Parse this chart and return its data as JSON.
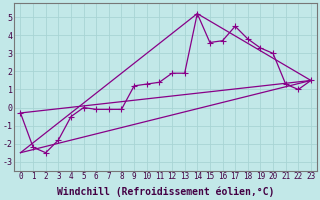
{
  "background_color": "#c2e8e8",
  "grid_color": "#a8d4d4",
  "line_color": "#880088",
  "xlabel": "Windchill (Refroidissement éolien,°C)",
  "xlabel_fontsize": 7,
  "ylim": [
    -3.5,
    5.8
  ],
  "xlim": [
    -0.5,
    23.5
  ],
  "yticks": [
    -3,
    -2,
    -1,
    0,
    1,
    2,
    3,
    4,
    5
  ],
  "xticks": [
    0,
    1,
    2,
    3,
    4,
    5,
    6,
    7,
    8,
    9,
    10,
    11,
    12,
    13,
    14,
    15,
    16,
    17,
    18,
    19,
    20,
    21,
    22,
    23
  ],
  "series1_x": [
    0,
    1,
    2,
    3,
    4,
    5,
    6,
    7,
    8,
    9,
    10,
    11,
    12,
    13,
    14,
    15,
    16,
    17,
    18,
    19,
    20,
    21,
    22,
    23
  ],
  "series1_y": [
    -0.3,
    -2.2,
    -2.5,
    -1.8,
    -0.5,
    0.0,
    -0.1,
    -0.1,
    -0.1,
    1.2,
    1.3,
    1.4,
    1.9,
    1.9,
    5.2,
    3.6,
    3.7,
    4.5,
    3.8,
    3.3,
    3.0,
    1.3,
    1.0,
    1.5
  ],
  "series2_x": [
    0,
    23
  ],
  "series2_y": [
    -2.5,
    1.5
  ],
  "series3_x": [
    0,
    14,
    23
  ],
  "series3_y": [
    -2.5,
    5.2,
    1.5
  ],
  "series4_x": [
    0,
    23
  ],
  "series4_y": [
    -0.3,
    1.5
  ],
  "tick_fontsize": 5.5,
  "marker_size": 3,
  "linewidth": 0.9
}
